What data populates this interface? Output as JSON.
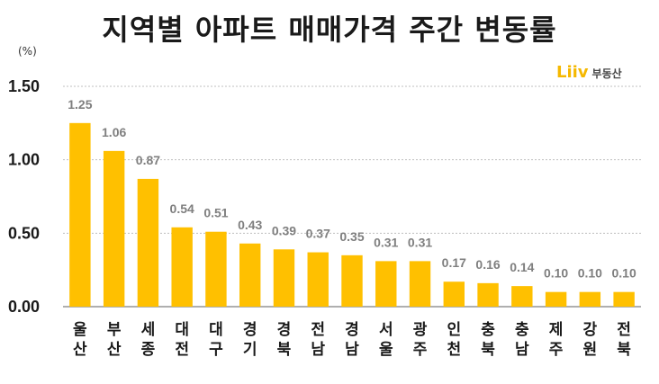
{
  "header": {
    "title": "지역별 아파트 매매가격 주간 변동률",
    "unit": "(%)"
  },
  "logo": {
    "mark": "Liiv",
    "text": "부동산"
  },
  "colors": {
    "bar": "#FFC000",
    "grid": "#bfbfbf",
    "value_label": "#7f7f7f"
  },
  "chart_data": {
    "type": "bar",
    "title": "지역별 아파트 매매가격 주간 변동률",
    "ylabel": "(%)",
    "xlabel": "",
    "ylim": [
      0,
      1.5
    ],
    "yticks": [
      "0.00",
      "0.50",
      "1.00",
      "1.50"
    ],
    "grid": true,
    "categories": [
      [
        "울",
        "산"
      ],
      [
        "부",
        "산"
      ],
      [
        "세",
        "종"
      ],
      [
        "대",
        "전"
      ],
      [
        "대",
        "구"
      ],
      [
        "경",
        "기"
      ],
      [
        "경",
        "북"
      ],
      [
        "전",
        "남"
      ],
      [
        "경",
        "남"
      ],
      [
        "서",
        "울"
      ],
      [
        "광",
        "주"
      ],
      [
        "인",
        "천"
      ],
      [
        "충",
        "북"
      ],
      [
        "충",
        "남"
      ],
      [
        "제",
        "주"
      ],
      [
        "강",
        "원"
      ],
      [
        "전",
        "북"
      ]
    ],
    "values": [
      1.25,
      1.06,
      0.87,
      0.54,
      0.51,
      0.43,
      0.39,
      0.37,
      0.35,
      0.31,
      0.31,
      0.17,
      0.16,
      0.14,
      0.1,
      0.1,
      0.1
    ],
    "value_labels": [
      "1.25",
      "1.06",
      "0.87",
      "0.54",
      "0.51",
      "0.43",
      "0.39",
      "0.37",
      "0.35",
      "0.31",
      "0.31",
      "0.17",
      "0.16",
      "0.14",
      "0.10",
      "0.10",
      "0.10"
    ]
  }
}
